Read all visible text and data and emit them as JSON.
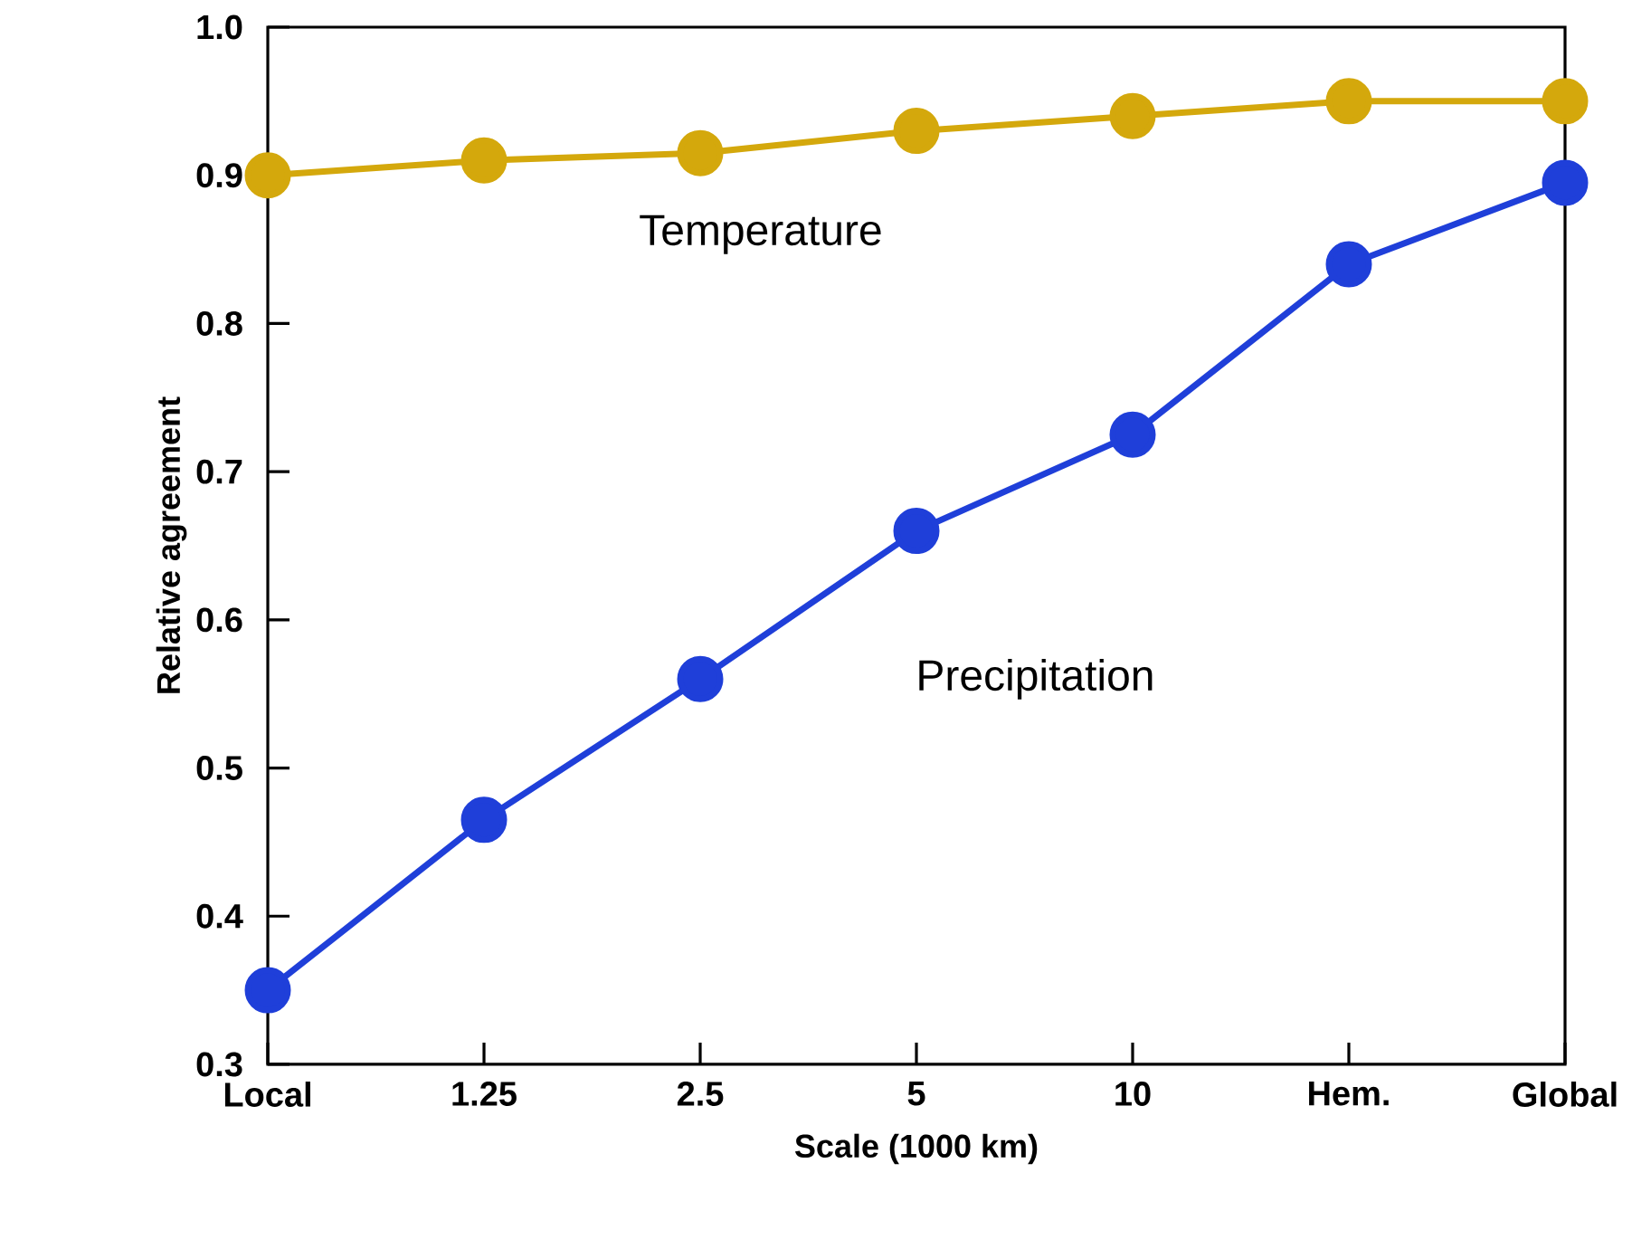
{
  "chart_data": {
    "type": "line",
    "xlabel": "Scale (1000 km)",
    "ylabel": "Relative agreement",
    "categories": [
      "Local",
      "1.25",
      "2.5",
      "5",
      "10",
      "Hem.",
      "Global"
    ],
    "series": [
      {
        "name": "Temperature",
        "color": "#d4a80c",
        "values": [
          0.9,
          0.91,
          0.915,
          0.93,
          0.94,
          0.95,
          0.95
        ]
      },
      {
        "name": "Precipitation",
        "color": "#1f3fd9",
        "values": [
          0.35,
          0.465,
          0.56,
          0.66,
          0.725,
          0.84,
          0.895
        ]
      }
    ],
    "ylim": [
      0.3,
      1.0
    ],
    "yticks": [
      0.3,
      0.4,
      0.5,
      0.6,
      0.7,
      0.8,
      0.9,
      {
        "value": 1.0,
        "label": "1.0"
      }
    ],
    "legend": false,
    "grid": false,
    "marker": "circle",
    "line_style": "solid"
  }
}
